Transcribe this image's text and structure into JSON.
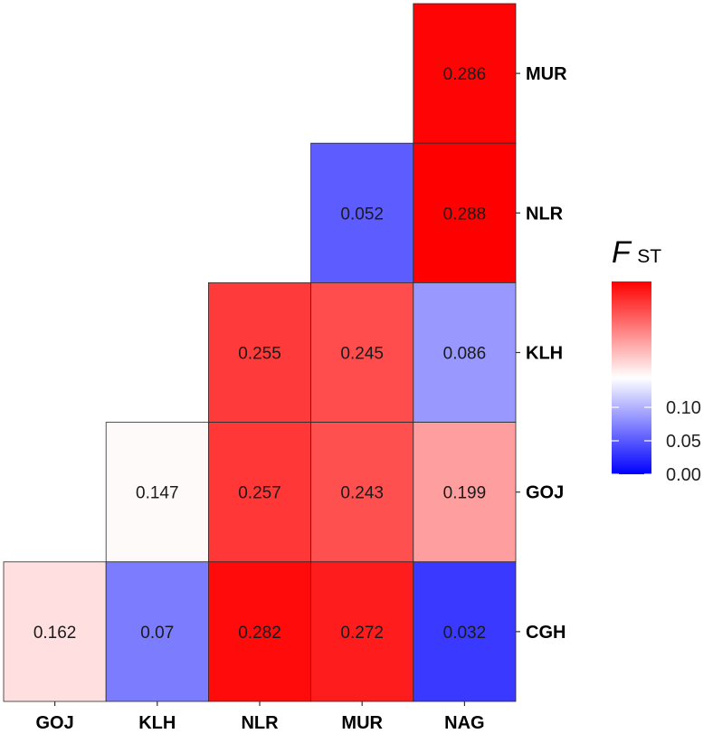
{
  "chart_data": {
    "type": "heatmap",
    "title": "",
    "xlabel": "",
    "ylabel": "",
    "x_categories": [
      "GOJ",
      "KLH",
      "NLR",
      "MUR",
      "NAG"
    ],
    "y_categories": [
      "CGH",
      "GOJ",
      "KLH",
      "NLR",
      "MUR"
    ],
    "y_axis_position": "right",
    "cells": [
      {
        "x": "NAG",
        "y": "MUR",
        "value": 0.286
      },
      {
        "x": "MUR",
        "y": "NLR",
        "value": 0.052
      },
      {
        "x": "NAG",
        "y": "NLR",
        "value": 0.288
      },
      {
        "x": "NLR",
        "y": "KLH",
        "value": 0.255
      },
      {
        "x": "MUR",
        "y": "KLH",
        "value": 0.245
      },
      {
        "x": "NAG",
        "y": "KLH",
        "value": 0.086
      },
      {
        "x": "KLH",
        "y": "GOJ",
        "value": 0.147
      },
      {
        "x": "NLR",
        "y": "GOJ",
        "value": 0.257
      },
      {
        "x": "MUR",
        "y": "GOJ",
        "value": 0.243
      },
      {
        "x": "NAG",
        "y": "GOJ",
        "value": 0.199
      },
      {
        "x": "GOJ",
        "y": "CGH",
        "value": 0.162
      },
      {
        "x": "KLH",
        "y": "CGH",
        "value": 0.07
      },
      {
        "x": "NLR",
        "y": "CGH",
        "value": 0.282
      },
      {
        "x": "MUR",
        "y": "CGH",
        "value": 0.272
      },
      {
        "x": "NAG",
        "y": "CGH",
        "value": 0.032
      }
    ],
    "color_scale": {
      "low": "#0000ff",
      "mid": "#ffffff",
      "high": "#ff0000",
      "low_value": 0.0,
      "mid_value": 0.144,
      "high_value": 0.288
    },
    "legend": {
      "title_main": "F",
      "title_sub": "ST",
      "ticks": [
        0.0,
        0.05,
        0.1
      ],
      "tick_labels": [
        "0.00",
        "0.05",
        "0.10"
      ],
      "range": [
        0.0,
        0.288
      ],
      "position": "right"
    },
    "grid": false
  }
}
